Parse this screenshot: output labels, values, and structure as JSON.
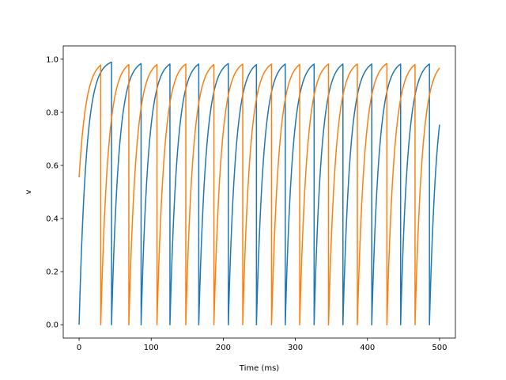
{
  "chart_data": {
    "type": "line",
    "title": "",
    "xlabel": "Time (ms)",
    "ylabel": "v",
    "xlim": [
      -22,
      522
    ],
    "ylim": [
      -0.05,
      1.05
    ],
    "x_ticks": [
      0,
      100,
      200,
      300,
      400,
      500
    ],
    "y_ticks": [
      0.0,
      0.2,
      0.4,
      0.6,
      0.8,
      1.0
    ],
    "x_tick_labels": [
      "0",
      "100",
      "200",
      "300",
      "400",
      "500"
    ],
    "y_tick_labels": [
      "0.0",
      "0.2",
      "0.4",
      "0.6",
      "0.8",
      "1.0"
    ],
    "grid": false,
    "legend": "none",
    "t_end": 500,
    "series": [
      {
        "color": "#1f77b4",
        "tau_ms": 10,
        "v0": 0.0,
        "reset_times": [
          45,
          86,
          126,
          166,
          207,
          246,
          286,
          326,
          366,
          406,
          446,
          486
        ]
      },
      {
        "color": "#ff7f0e",
        "tau_ms": 10,
        "v0": 0.555,
        "reset_times": [
          30,
          69,
          108,
          148,
          187,
          227,
          267,
          306,
          346,
          386,
          427,
          466
        ]
      }
    ]
  }
}
